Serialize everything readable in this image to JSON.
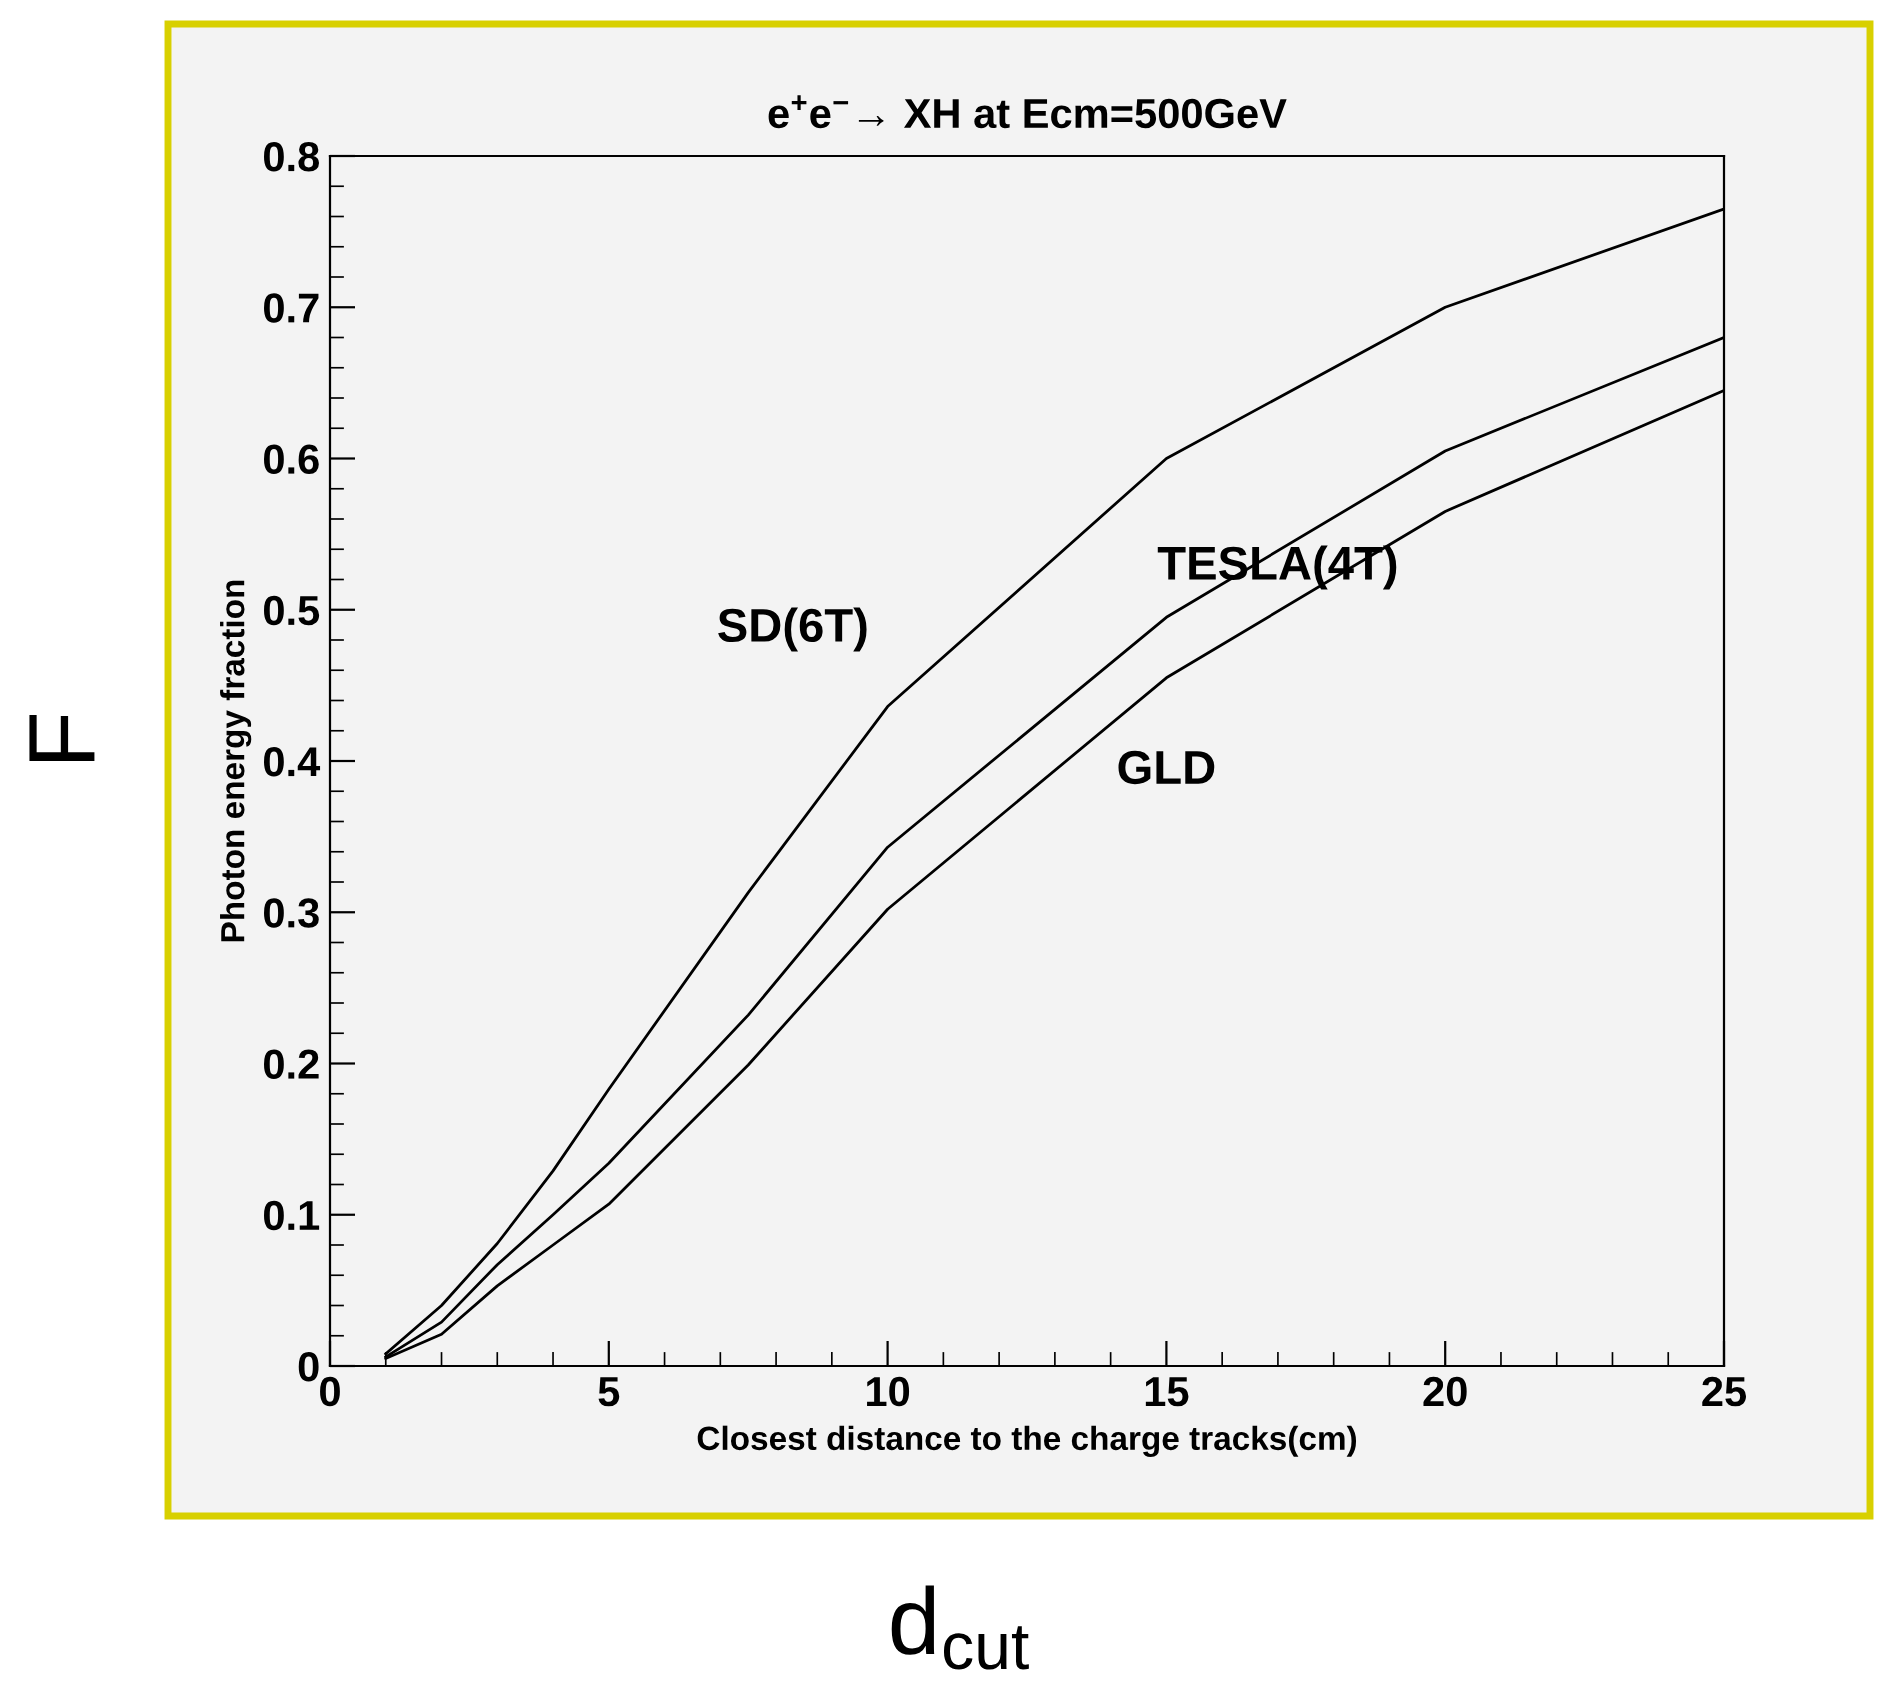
{
  "chart_data": {
    "type": "line",
    "title": "e$^{+}$e$^{−}$→ XH at Ecm=500GeV",
    "xlabel": "Closest distance to the charge tracks(cm)",
    "ylabel": "Photon energy fraction",
    "x": [
      1,
      2,
      3,
      4,
      5,
      7.5,
      10,
      15,
      20,
      25
    ],
    "series": [
      {
        "name": "SD(6T)",
        "color": "#000000",
        "values": [
          0.008,
          0.04,
          0.081,
          0.129,
          0.183,
          0.313,
          0.436,
          0.6,
          0.7,
          0.765
        ]
      },
      {
        "name": "TESLA(4T)",
        "color": "#000000",
        "values": [
          0.006,
          0.029,
          0.067,
          0.1,
          0.134,
          0.232,
          0.343,
          0.495,
          0.605,
          0.68
        ]
      },
      {
        "name": "GLD",
        "color": "#000000",
        "values": [
          0.005,
          0.021,
          0.053,
          0.08,
          0.107,
          0.199,
          0.302,
          0.455,
          0.565,
          0.645
        ]
      }
    ],
    "annotations": [
      "F",
      "d$_{cut}$"
    ],
    "xlim": [
      0,
      25
    ],
    "ylim": [
      0,
      0.8
    ],
    "xticks": [
      0,
      5,
      10,
      15,
      20,
      25
    ],
    "yticks": [
      0,
      0.1,
      0.2,
      0.3,
      0.4,
      0.5,
      0.6,
      0.7,
      0.8
    ],
    "grid": false,
    "legend": false,
    "marker": "none",
    "line_style": "solid"
  }
}
